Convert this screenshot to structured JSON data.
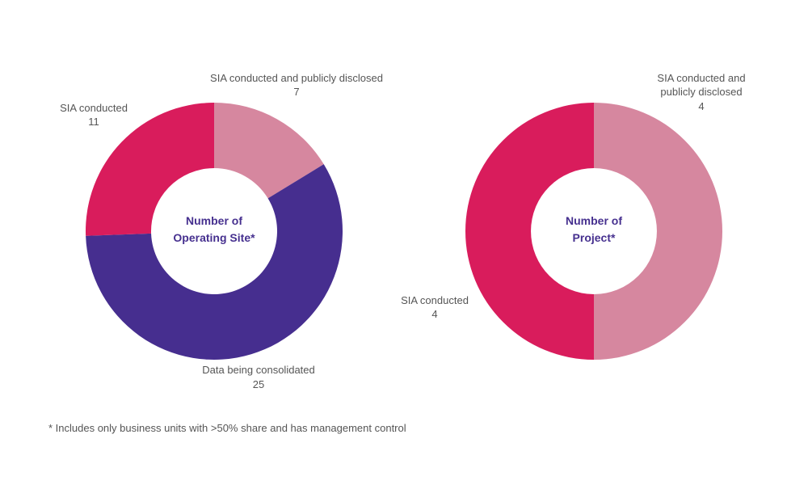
{
  "chart_data": [
    {
      "type": "pie",
      "center_label": [
        "Number of",
        "Operating Site*"
      ],
      "colors": [
        "#d6879f",
        "#462e8f",
        "#d91c5c"
      ],
      "slices": [
        {
          "label": [
            "SIA conducted and publicly disclosed"
          ],
          "value": 7
        },
        {
          "label": [
            "Data being consolidated"
          ],
          "value": 25
        },
        {
          "label": [
            "SIA conducted"
          ],
          "value": 11
        }
      ]
    },
    {
      "type": "pie",
      "center_label": [
        "Number of",
        "Project*"
      ],
      "colors": [
        "#d6879f",
        "#d91c5c"
      ],
      "slices": [
        {
          "label": [
            "SIA conducted and",
            "publicly disclosed"
          ],
          "value": 4
        },
        {
          "label": [
            "SIA conducted"
          ],
          "value": 4
        }
      ]
    }
  ],
  "footnote": "* Includes only business units with >50% share and has management control"
}
